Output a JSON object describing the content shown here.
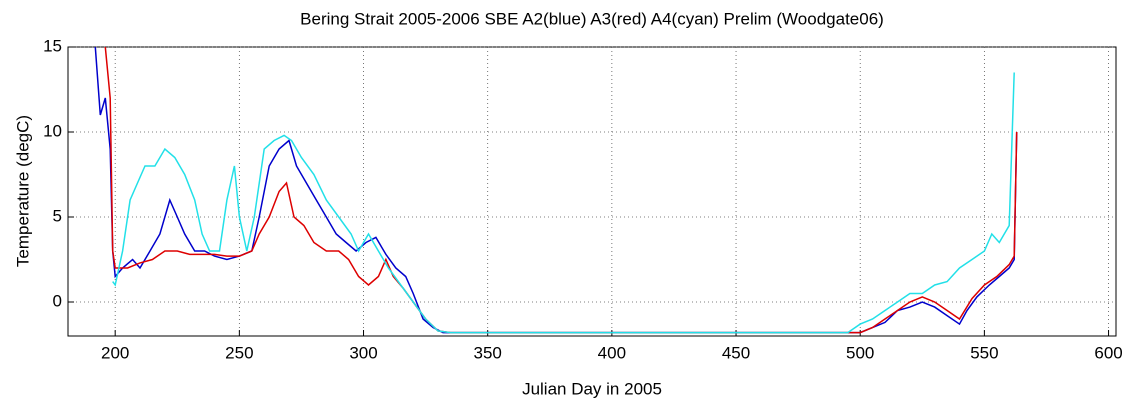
{
  "chart_data": {
    "type": "line",
    "title": "Bering Strait 2005-2006 SBE A2(blue) A3(red) A4(cyan) Prelim (Woodgate06)",
    "x_label": "Julian Day in 2005",
    "y_label": "Temperature (degC)",
    "xlim": [
      181,
      603
    ],
    "ylim": [
      -2,
      15
    ],
    "xticks": [
      200,
      250,
      300,
      350,
      400,
      450,
      500,
      550,
      600
    ],
    "yticks": [
      0,
      5,
      10,
      15
    ],
    "grid": true,
    "series": [
      {
        "color": "#0000cc",
        "x": [
          192,
          194,
          196,
          198,
          199,
          200,
          203,
          207,
          210,
          214,
          218,
          222,
          225,
          228,
          232,
          236,
          240,
          245,
          250,
          255,
          258,
          262,
          266,
          270,
          273,
          277,
          281,
          285,
          289,
          293,
          297,
          301,
          305,
          309,
          313,
          317,
          320,
          324,
          328,
          332,
          340,
          400,
          450,
          500,
          510,
          515,
          520,
          525,
          530,
          535,
          540,
          543,
          547,
          552,
          556,
          560,
          562,
          563
        ],
        "values": [
          15,
          11,
          12,
          9,
          3,
          1.5,
          2,
          2.5,
          2,
          3,
          4,
          6,
          5,
          4,
          3,
          3,
          2.7,
          2.5,
          2.7,
          3,
          5,
          8,
          9,
          9.5,
          8,
          7,
          6,
          5,
          4,
          3.5,
          3,
          3.5,
          3.8,
          2.8,
          2,
          1.5,
          0.5,
          -1,
          -1.5,
          -1.8,
          -1.8,
          -1.8,
          -1.8,
          -1.8,
          -1.2,
          -0.5,
          -0.3,
          0,
          -0.3,
          -0.8,
          -1.3,
          -0.5,
          0.3,
          1,
          1.5,
          2,
          2.5,
          10
        ]
      },
      {
        "color": "#dd0000",
        "x": [
          196,
          198,
          199,
          200,
          205,
          210,
          215,
          220,
          225,
          230,
          235,
          240,
          245,
          250,
          255,
          258,
          262,
          266,
          269,
          272,
          276,
          280,
          285,
          290,
          294,
          298,
          302,
          306,
          309,
          312,
          316,
          320,
          325,
          330,
          335,
          400,
          450,
          500,
          505,
          510,
          515,
          520,
          525,
          530,
          535,
          540,
          545,
          550,
          555,
          560,
          562,
          563
        ],
        "values": [
          15,
          12,
          3,
          2,
          2,
          2.3,
          2.5,
          3,
          3,
          2.8,
          2.8,
          2.8,
          2.7,
          2.7,
          3,
          4,
          5,
          6.5,
          7,
          5,
          4.5,
          3.5,
          3,
          3,
          2.5,
          1.5,
          1,
          1.5,
          2.5,
          1.5,
          0.8,
          0,
          -1,
          -1.7,
          -1.8,
          -1.8,
          -1.8,
          -1.8,
          -1.5,
          -1,
          -0.5,
          0,
          0.3,
          0,
          -0.5,
          -1,
          0.2,
          1,
          1.5,
          2.2,
          2.7,
          10
        ]
      },
      {
        "color": "#22e0e8",
        "x": [
          199,
          200,
          203,
          206,
          209,
          212,
          216,
          220,
          224,
          228,
          232,
          235,
          238,
          242,
          245,
          248,
          250,
          253,
          256,
          260,
          264,
          268,
          271,
          275,
          280,
          285,
          290,
          295,
          298,
          302,
          306,
          310,
          315,
          320,
          325,
          330,
          335,
          400,
          450,
          495,
          500,
          505,
          510,
          515,
          520,
          525,
          530,
          535,
          540,
          545,
          550,
          553,
          556,
          560,
          562
        ],
        "values": [
          1.2,
          1,
          3,
          6,
          7,
          8,
          8,
          9,
          8.5,
          7.5,
          6,
          4,
          3,
          3,
          6,
          8,
          5,
          3,
          5,
          9,
          9.5,
          9.8,
          9.5,
          8.5,
          7.5,
          6,
          5,
          4,
          3,
          4,
          3,
          2,
          1,
          0,
          -1,
          -1.7,
          -1.8,
          -1.8,
          -1.8,
          -1.8,
          -1.3,
          -1,
          -0.5,
          0,
          0.5,
          0.5,
          1,
          1.2,
          2,
          2.5,
          3,
          4,
          3.5,
          4.5,
          13.5
        ]
      }
    ]
  }
}
